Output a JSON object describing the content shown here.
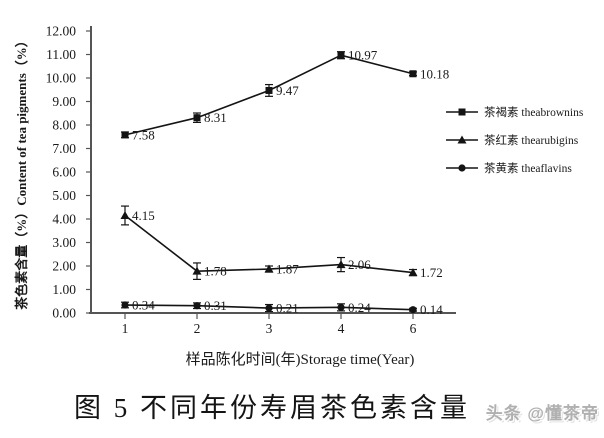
{
  "figure": {
    "caption": "图 5  不同年份寿眉茶色素含量",
    "watermark": "头条 @懂茶帝"
  },
  "chart_data": {
    "type": "line",
    "title": "",
    "xlabel": "样品陈化时间(年)Storage time(Year)",
    "ylabel": "茶色素含量（%）Content of tea pigments（%）",
    "x_categories": [
      "1",
      "2",
      "3",
      "4",
      "6"
    ],
    "ytick_labels": [
      "0.00",
      "1.00",
      "2.00",
      "3.00",
      "4.00",
      "5.00",
      "6.00",
      "7.00",
      "8.00",
      "9.00",
      "10.00",
      "11.00",
      "12.00"
    ],
    "ylim": [
      0,
      12
    ],
    "grid": false,
    "legend_position": "right",
    "series": [
      {
        "name": "茶褐素 theabrownins",
        "marker": "square",
        "values": [
          7.58,
          8.31,
          9.47,
          10.97,
          10.18
        ],
        "point_labels": [
          "7.58",
          "8.31",
          "9.47",
          "10.97",
          "10.18"
        ],
        "error_bars": [
          0.12,
          0.2,
          0.25,
          0.15,
          0.08
        ]
      },
      {
        "name": "茶红素 thearubigins",
        "marker": "triangle",
        "values": [
          4.15,
          1.78,
          1.87,
          2.06,
          1.72
        ],
        "point_labels": [
          "4.15",
          "1.78",
          "1.87",
          "2.06",
          "1.72"
        ],
        "error_bars": [
          0.4,
          0.35,
          0.13,
          0.3,
          0.13
        ]
      },
      {
        "name": "茶黄素 theaflavins",
        "marker": "circle",
        "values": [
          0.34,
          0.31,
          0.21,
          0.24,
          0.14
        ],
        "point_labels": [
          "0.34",
          "0.31",
          "0.21",
          "0.24",
          "0.14"
        ],
        "error_bars": [
          0.12,
          0.12,
          0.15,
          0.15,
          0.06
        ]
      }
    ]
  },
  "colors": {
    "series": "#141414",
    "axis": "#555555",
    "text": "#1a1a1a",
    "watermark": "#b0b0b0",
    "background": "#ffffff"
  }
}
